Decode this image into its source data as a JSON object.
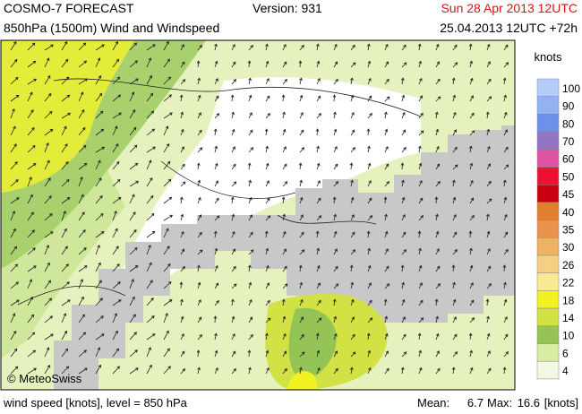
{
  "header": {
    "title": "COSMO-7 FORECAST",
    "version": "Version: 931",
    "valid_time": "Sun 28 Apr 2013 12UTC",
    "subtitle": "850hPa (1500m) Wind and Windspeed",
    "run": "25.04.2013 12UTC +72h"
  },
  "legend": {
    "title": "knots",
    "items": [
      {
        "value": 100,
        "color": "#b3cdf8"
      },
      {
        "value": 90,
        "color": "#92b3f2"
      },
      {
        "value": 80,
        "color": "#6d90ea"
      },
      {
        "value": 70,
        "color": "#9274c2"
      },
      {
        "value": 60,
        "color": "#e052a2"
      },
      {
        "value": 50,
        "color": "#ee1030"
      },
      {
        "value": 45,
        "color": "#c80012"
      },
      {
        "value": 40,
        "color": "#e0802e"
      },
      {
        "value": 35,
        "color": "#e8924a"
      },
      {
        "value": 30,
        "color": "#f0b264"
      },
      {
        "value": 26,
        "color": "#f5d084"
      },
      {
        "value": 22,
        "color": "#f8ea92"
      },
      {
        "value": 18,
        "color": "#f2f222"
      },
      {
        "value": 14,
        "color": "#d2e244"
      },
      {
        "value": 10,
        "color": "#94c456"
      },
      {
        "value": 6,
        "color": "#d8eca2"
      },
      {
        "value": 4,
        "color": "#f2f8e2"
      }
    ]
  },
  "map": {
    "credit": "© MeteoSwiss"
  },
  "footer": {
    "description": "wind speed [knots], level = 850 hPa",
    "mean_label": "Mean:",
    "mean": 6.7,
    "max_label": "Max:",
    "max": 16.6,
    "unit": "[knots]"
  }
}
